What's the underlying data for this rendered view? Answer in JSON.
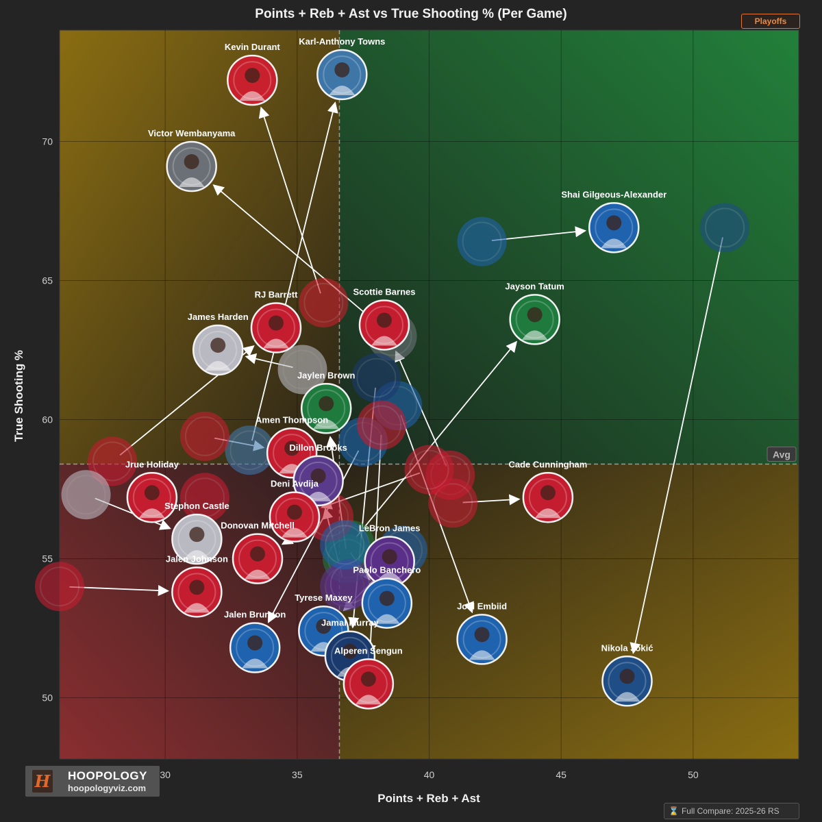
{
  "header": {
    "title": "Points + Reb + Ast vs True Shooting % (Per Game)",
    "badge": "Playoffs"
  },
  "footer": {
    "compare_label": "Full Compare: 2025-26 RS"
  },
  "brand": {
    "name": "HOOPOLOGY",
    "url": "hoopologyviz.com",
    "mark": "H"
  },
  "chart_data": {
    "type": "scatter",
    "title": "Points + Reb + Ast vs True Shooting % (Per Game)",
    "xlabel": "Points + Reb + Ast",
    "ylabel": "True Shooting %",
    "xlim": [
      26.0,
      54.0
    ],
    "ylim": [
      47.8,
      74.0
    ],
    "x_ticks": [
      30,
      35,
      40,
      45,
      50
    ],
    "y_ticks": [
      50,
      55,
      60,
      65,
      70
    ],
    "average": {
      "x": 36.6,
      "y": 58.4,
      "label": "Avg"
    },
    "comparison_label": "Full Compare: 2025-26 RS",
    "players": [
      {
        "name": "Karl-Anthony Towns",
        "x": 36.7,
        "y": 72.4,
        "color": "#3f76a8",
        "arrow_from": {
          "x": 33.2,
          "y": 58.9
        }
      },
      {
        "name": "Kevin Durant",
        "x": 33.3,
        "y": 72.2,
        "color": "#c8202c",
        "arrow_from": {
          "x": 36.0,
          "y": 64.2
        }
      },
      {
        "name": "Victor Wembanyama",
        "x": 31.0,
        "y": 69.1,
        "color": "#6a7076",
        "arrow_from": {
          "x": 38.6,
          "y": 63.0
        }
      },
      {
        "name": "Shai Gilgeous-Alexander",
        "x": 47.0,
        "y": 66.9,
        "color": "#1f62ad",
        "arrow_from": {
          "x": 42.0,
          "y": 66.4
        }
      },
      {
        "name": "Jayson Tatum",
        "x": 44.0,
        "y": 63.6,
        "color": "#1f7a3e",
        "arrow_from": {
          "x": 37.0,
          "y": 55.5
        }
      },
      {
        "name": "Scottie Barnes",
        "x": 38.3,
        "y": 63.4,
        "color": "#c51d30",
        "arrow_from": {
          "x": 40.8,
          "y": 58.0
        }
      },
      {
        "name": "RJ Barrett",
        "x": 34.2,
        "y": 63.3,
        "color": "#c51d30",
        "arrow_from": {
          "x": 28.0,
          "y": 58.5
        }
      },
      {
        "name": "James Harden",
        "x": 32.0,
        "y": 62.5,
        "color": "#b9b9c2",
        "arrow_from": {
          "x": 35.2,
          "y": 61.8
        }
      },
      {
        "name": "Jaylen Brown",
        "x": 36.1,
        "y": 60.4,
        "color": "#1f7a3e",
        "arrow_from": {
          "x": 36.9,
          "y": 55.0
        }
      },
      {
        "name": "Amen Thompson",
        "x": 34.8,
        "y": 58.8,
        "color": "#c51d30",
        "arrow_from": {
          "x": 31.5,
          "y": 59.4
        }
      },
      {
        "name": "Dillon Brooks",
        "x": 35.8,
        "y": 57.8,
        "color": "#5a3a8a",
        "arrow_from": {
          "x": 36.8,
          "y": 54.0
        }
      },
      {
        "name": "Cade Cunningham",
        "x": 44.5,
        "y": 57.2,
        "color": "#c51d30",
        "arrow_from": {
          "x": 40.9,
          "y": 57.0
        }
      },
      {
        "name": "Deni Avdija",
        "x": 34.9,
        "y": 56.5,
        "color": "#c51d30",
        "arrow_from": {
          "x": 40.0,
          "y": 58.2
        }
      },
      {
        "name": "Jrue Holiday",
        "x": 29.5,
        "y": 57.2,
        "color": "#c51d30",
        "arrow_from": {
          "x": 31.5,
          "y": 57.2
        }
      },
      {
        "name": "Stephon Castle",
        "x": 31.2,
        "y": 55.7,
        "color": "#b9b9c2",
        "arrow_from": {
          "x": 27.0,
          "y": 57.3
        }
      },
      {
        "name": "Donovan Mitchell",
        "x": 33.5,
        "y": 55.0,
        "color": "#c51d30",
        "arrow_from": {
          "x": 36.2,
          "y": 56.5
        }
      },
      {
        "name": "LeBron James",
        "x": 38.5,
        "y": 54.9,
        "color": "#5a2f88",
        "arrow_from": {
          "x": 37.0,
          "y": 54.1
        }
      },
      {
        "name": "Jalen Johnson",
        "x": 31.2,
        "y": 53.8,
        "color": "#c51d30",
        "arrow_from": {
          "x": 26.0,
          "y": 54.0
        }
      },
      {
        "name": "Paolo Banchero",
        "x": 38.4,
        "y": 53.4,
        "color": "#1f62ad",
        "arrow_from": {
          "x": 36.8,
          "y": 55.5
        }
      },
      {
        "name": "Tyrese Maxey",
        "x": 36.0,
        "y": 52.4,
        "color": "#1f62ad",
        "arrow_from": {
          "x": 39.0,
          "y": 55.3
        }
      },
      {
        "name": "Jalen Brunson",
        "x": 33.4,
        "y": 51.8,
        "color": "#1f62ad",
        "arrow_from": {
          "x": 37.5,
          "y": 59.2
        }
      },
      {
        "name": "Joel Embiid",
        "x": 42.0,
        "y": 52.1,
        "color": "#1f62ad",
        "arrow_from": {
          "x": 38.8,
          "y": 60.5
        }
      },
      {
        "name": "Jamal Murray",
        "x": 37.0,
        "y": 51.5,
        "color": "#1a3a6e",
        "arrow_from": {
          "x": 38.0,
          "y": 61.5
        }
      },
      {
        "name": "Alperen Sengun",
        "x": 37.7,
        "y": 50.5,
        "color": "#c51d30",
        "arrow_from": {
          "x": 38.2,
          "y": 59.8
        }
      },
      {
        "name": "Nikola Jokić",
        "x": 47.5,
        "y": 50.6,
        "color": "#1f4e86",
        "arrow_from": {
          "x": 51.2,
          "y": 66.9
        }
      }
    ]
  }
}
